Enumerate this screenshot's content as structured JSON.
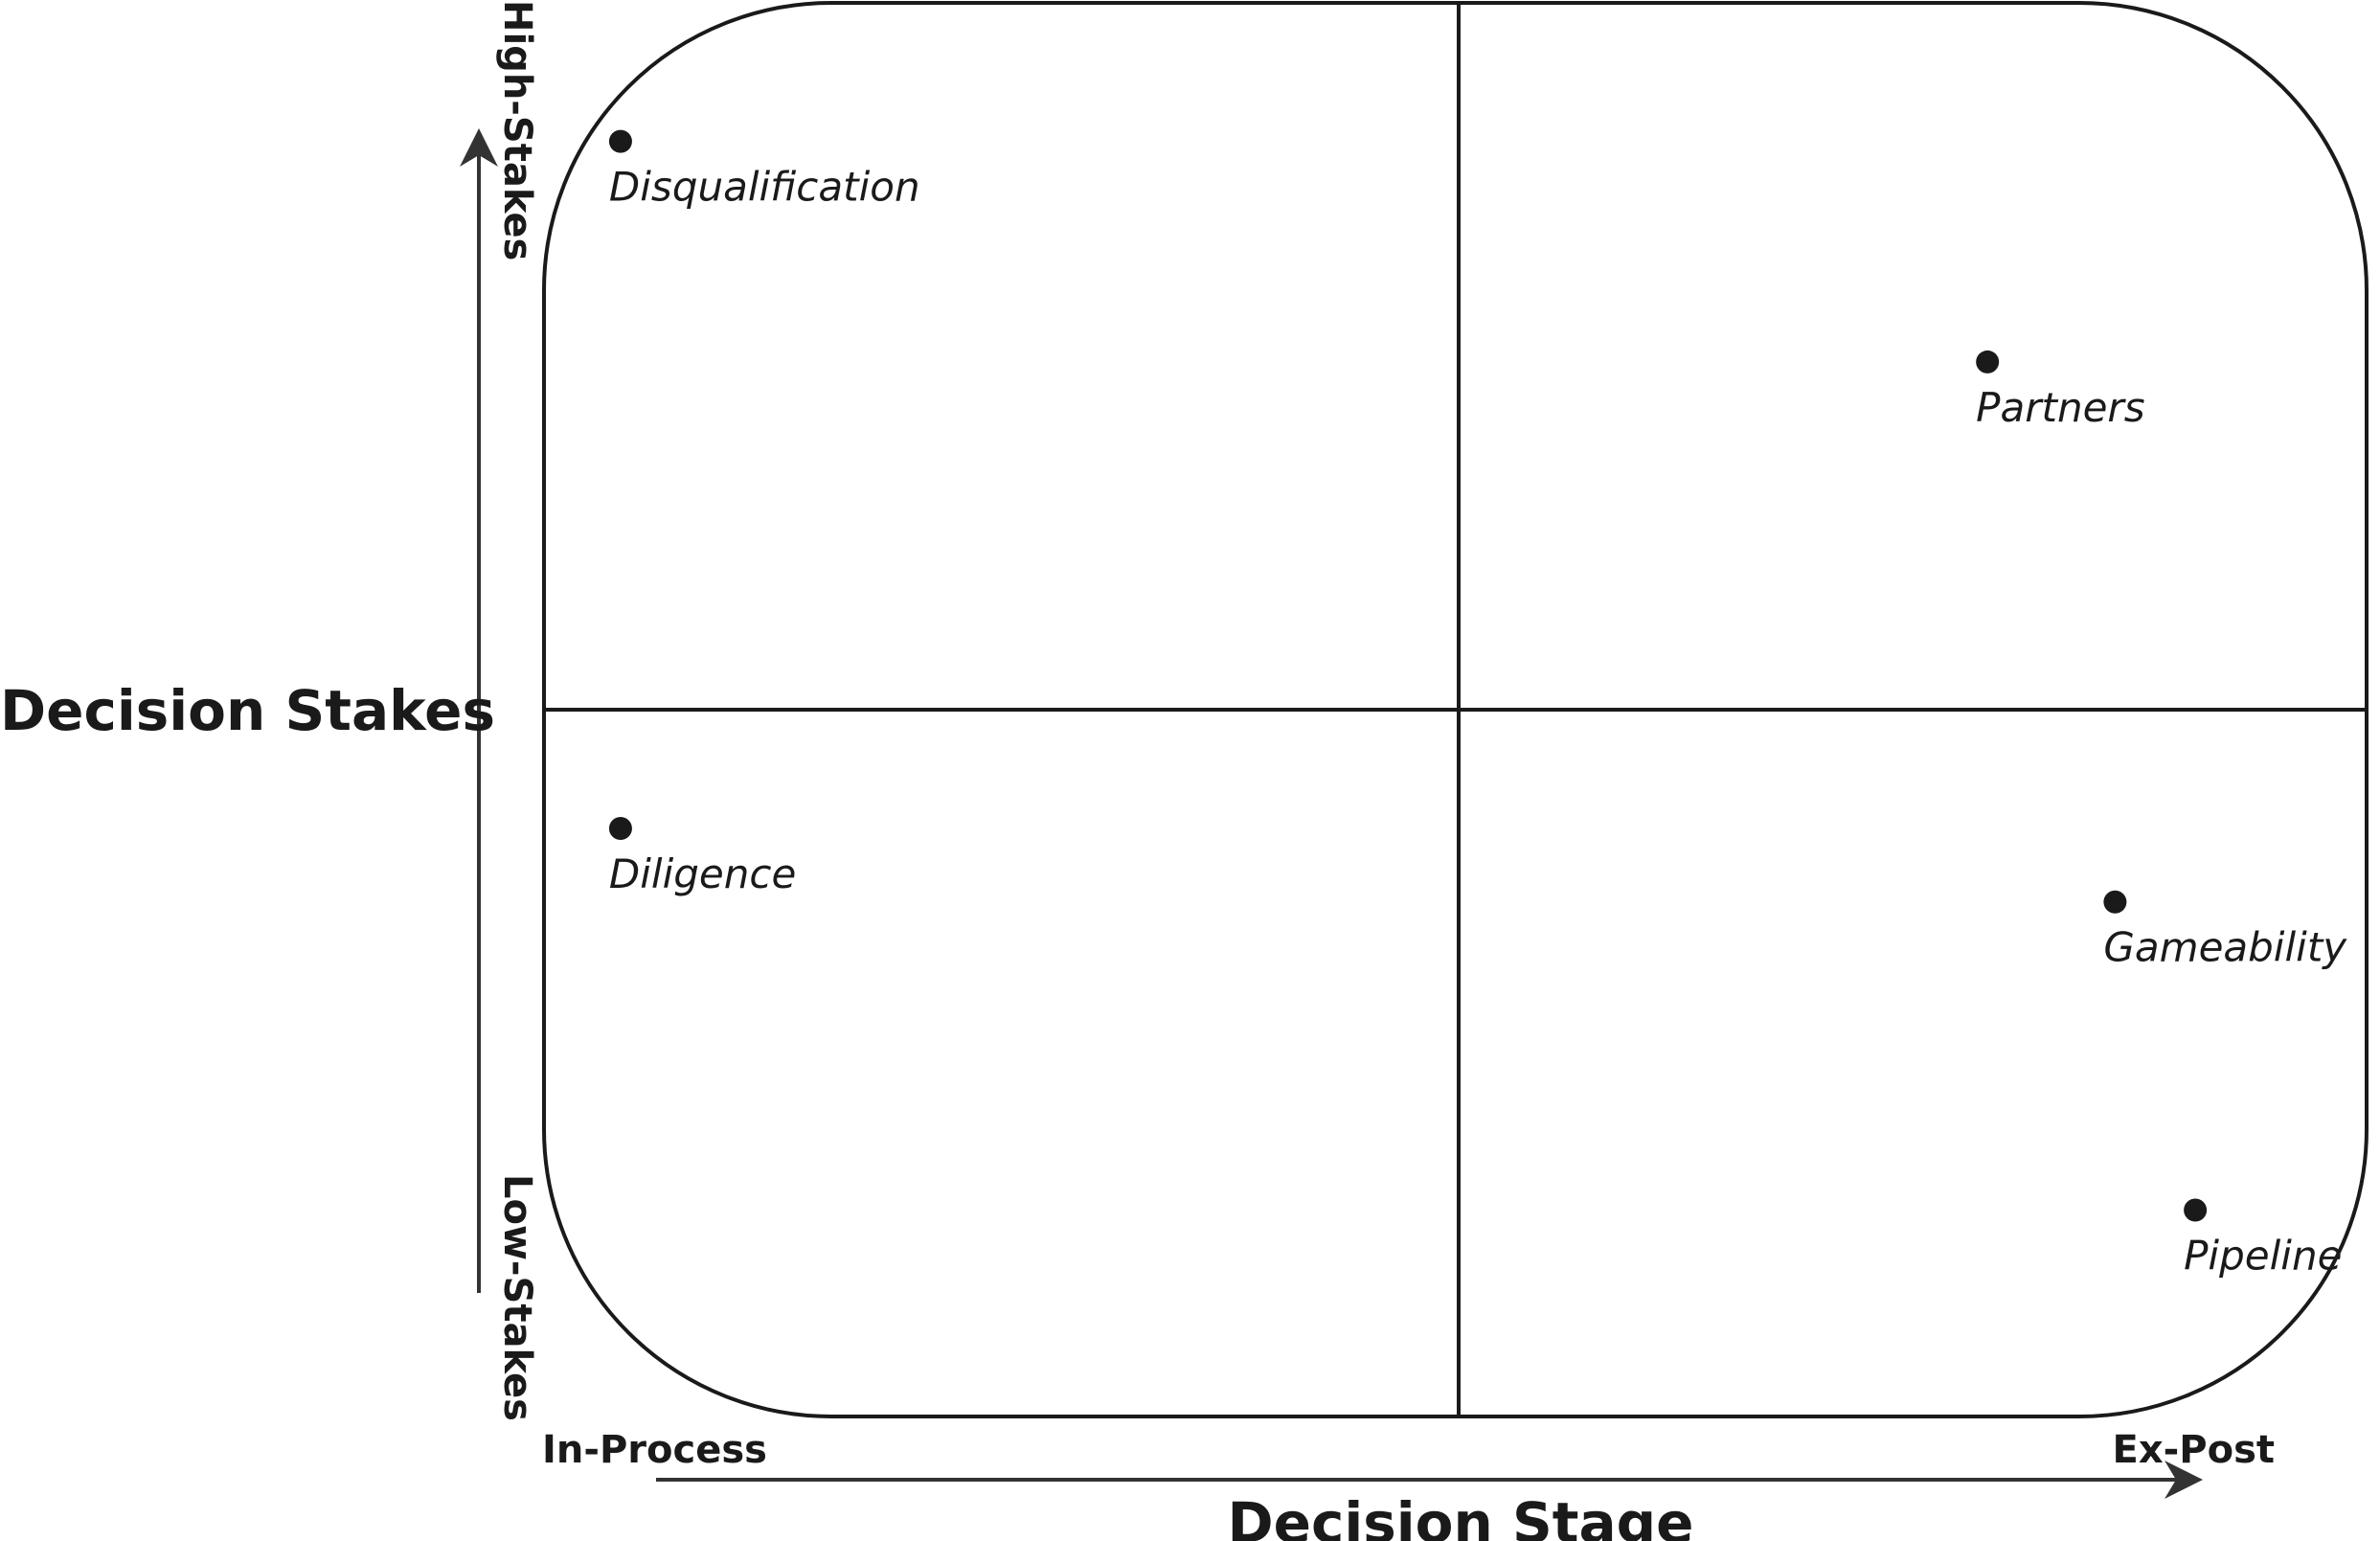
{
  "y_axis": {
    "title": "Decision Stakes",
    "high_label": "High-Stakes",
    "low_label": "Low-Stakes"
  },
  "x_axis": {
    "title": "Decision Stage",
    "start_label": "In-Process",
    "end_label": "Ex-Post"
  },
  "points": [
    {
      "label": "Disqualification",
      "stage": 0.042,
      "stakes": 0.902
    },
    {
      "label": "Partners",
      "stage": 0.792,
      "stakes": 0.746
    },
    {
      "label": "Diligence",
      "stage": 0.042,
      "stakes": 0.416
    },
    {
      "label": "Gameability",
      "stage": 0.862,
      "stakes": 0.364
    },
    {
      "label": "Pipeline",
      "stage": 0.906,
      "stakes": 0.146
    }
  ],
  "colors": {
    "ink": "#1a1a1a",
    "background": "#ffffff"
  }
}
